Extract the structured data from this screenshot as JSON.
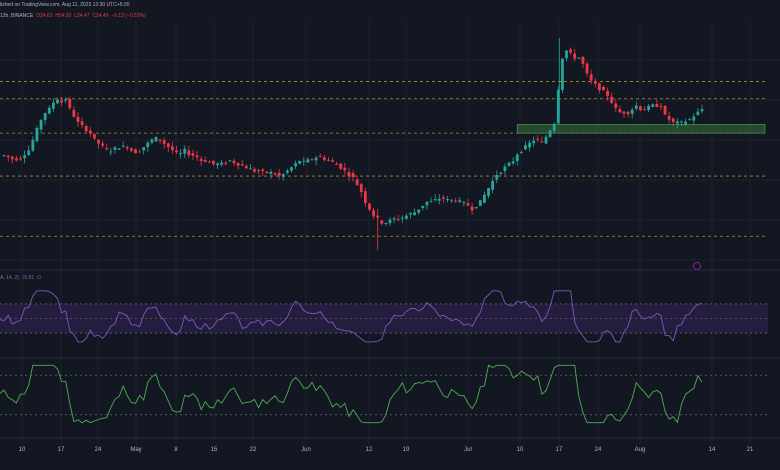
{
  "header": {
    "published": "lished on TradingView.com, Aug 11, 2023 13:30 UTC+5:30",
    "symbol_prefix": "12h, BINANCE",
    "open": "O24.61",
    "high": "H24.93",
    "low": "L24.47",
    "close": "C24.49",
    "change": "−0.13 (−0.53%)",
    "rsi_label": "A, 14, 2)",
    "rsi_value": "56.81",
    "rsi_extra": "∅"
  },
  "colors": {
    "background": "#131722",
    "up": "#26a69a",
    "down": "#f23645",
    "rsi_line": "#7e57c2",
    "rsi_band": "#2a1f46",
    "osc_line": "#4caf50",
    "level_line": "#c9a227",
    "zone_fill": "#2e5b35",
    "zone_stroke": "#4caf50"
  },
  "chart_data": {
    "type": "candlestick",
    "price_path": [
      37,
      37,
      36,
      35,
      35,
      36,
      38,
      40,
      46,
      52,
      58,
      62,
      64,
      68,
      70,
      68,
      70,
      64,
      60,
      56,
      54,
      52,
      50,
      46,
      44,
      42,
      40,
      40,
      41,
      42,
      42,
      42,
      40,
      39,
      40,
      42,
      44,
      46,
      47,
      46,
      44,
      42,
      40,
      38,
      38,
      40,
      38,
      37,
      36,
      34,
      34,
      33,
      32,
      32,
      32,
      33,
      34,
      33,
      32,
      31,
      30,
      29,
      28,
      28,
      27,
      27,
      27,
      26,
      25,
      26,
      28,
      30,
      32,
      34,
      33,
      34,
      35,
      36,
      36,
      35,
      34,
      33,
      32,
      30,
      28,
      26,
      24,
      20,
      16,
      10,
      6,
      2,
      0,
      -2,
      -2,
      -1,
      0,
      0,
      1,
      2,
      3,
      4,
      6,
      8,
      10,
      10,
      11,
      12,
      12,
      11,
      11,
      11,
      10,
      9,
      8,
      6,
      8,
      10,
      14,
      18,
      22,
      26,
      28,
      30,
      32,
      34,
      38,
      40,
      42,
      44,
      46,
      46,
      44,
      48,
      52,
      56,
      76,
      94,
      98,
      96,
      94,
      94,
      90,
      84,
      80,
      78,
      76,
      74,
      72,
      68,
      64,
      62,
      62,
      62,
      64,
      66,
      64,
      64,
      65,
      66,
      66,
      66,
      60,
      58,
      56,
      56,
      56,
      57,
      58,
      60,
      62,
      64
    ],
    "levels": [
      80,
      70,
      50,
      25,
      -10
    ],
    "zone": {
      "low": 50,
      "high": 55,
      "from_index": 126
    },
    "x_tick_labels": [
      "10",
      "17",
      "24",
      "May",
      "8",
      "15",
      "22",
      "Jun",
      "12",
      "19",
      "Jul",
      "10",
      "17",
      "24",
      "Aug",
      "14",
      "21"
    ],
    "rsi": {
      "length": 14,
      "value": 56.81,
      "band": [
        30,
        70
      ],
      "levels": [
        70,
        50,
        30
      ]
    },
    "oscillator": {
      "levels": [
        80,
        20
      ]
    }
  }
}
